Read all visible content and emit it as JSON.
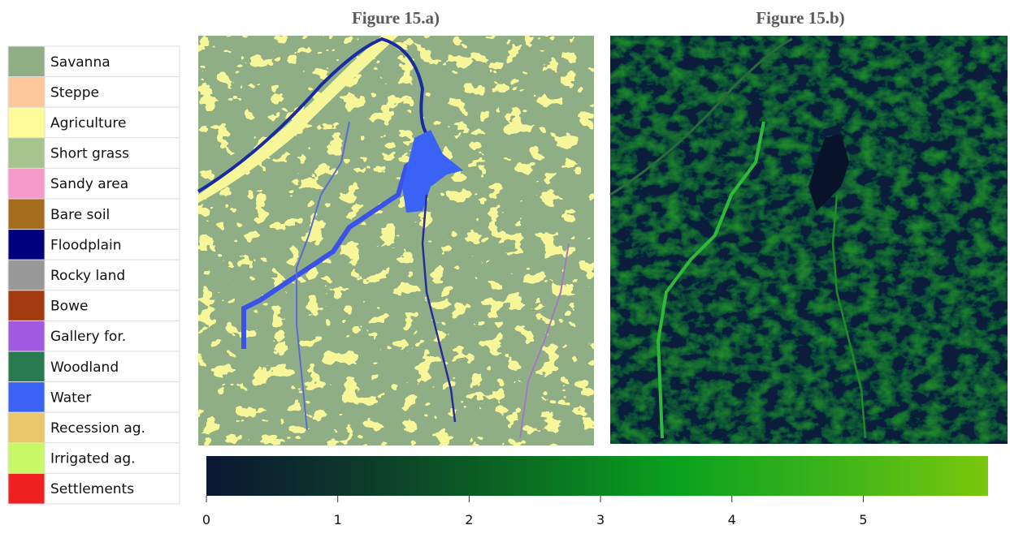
{
  "figures": [
    {
      "title": "Figure 15.a)"
    },
    {
      "title": "Figure 15.b)"
    }
  ],
  "legend": [
    {
      "label": "Savanna",
      "color": "#8fae86"
    },
    {
      "label": "Steppe",
      "color": "#fcc79a"
    },
    {
      "label": "Agriculture",
      "color": "#fcfc98"
    },
    {
      "label": "Short grass",
      "color": "#a7c48f"
    },
    {
      "label": "Sandy area",
      "color": "#f59ac9"
    },
    {
      "label": "Bare soil",
      "color": "#a56c1e"
    },
    {
      "label": "Floodplain",
      "color": "#00007f"
    },
    {
      "label": "Rocky land",
      "color": "#999999"
    },
    {
      "label": "Bowe",
      "color": "#a33a10"
    },
    {
      "label": "Gallery for.",
      "color": "#a05ae0"
    },
    {
      "label": "Woodland",
      "color": "#2a7a50"
    },
    {
      "label": "Water",
      "color": "#3a62f5"
    },
    {
      "label": "Recession ag.",
      "color": "#e9c86a"
    },
    {
      "label": "Irrigated ag.",
      "color": "#c8f865"
    },
    {
      "label": "Settlements",
      "color": "#f02020"
    }
  ],
  "colorbar": {
    "clim": [
      0,
      5.95
    ],
    "ticks": [
      0,
      1,
      2,
      3,
      4,
      5
    ],
    "colormap": [
      "#0b1733",
      "#0d3a2a",
      "#0a6a22",
      "#0aa11e",
      "#3cb41a",
      "#7ac70c"
    ]
  }
}
